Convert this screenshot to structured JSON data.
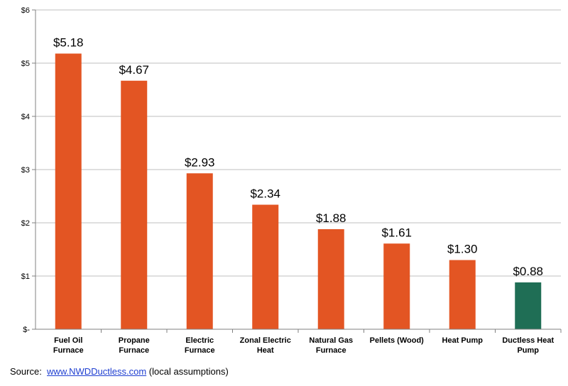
{
  "chart_data": {
    "type": "bar",
    "categories": [
      [
        "Fuel Oil",
        "Furnace"
      ],
      [
        "Propane",
        "Furnace"
      ],
      [
        "Electric",
        "Furnace"
      ],
      [
        "Zonal Electric",
        "Heat"
      ],
      [
        "Natural Gas",
        "Furnace"
      ],
      [
        "Pellets (Wood)"
      ],
      [
        "Heat Pump"
      ],
      [
        "Ductless Heat",
        "Pump"
      ]
    ],
    "values": [
      5.18,
      4.67,
      2.93,
      2.34,
      1.88,
      1.61,
      1.3,
      0.88
    ],
    "data_labels": [
      "$5.18",
      "$4.67",
      "$2.93",
      "$2.34",
      "$1.88",
      "$1.61",
      "$1.30",
      "$0.88"
    ],
    "bar_colors": [
      "#e35523",
      "#e35523",
      "#e35523",
      "#e35523",
      "#e35523",
      "#e35523",
      "#e35523",
      "#1f6e55"
    ],
    "ylim": [
      0,
      6
    ],
    "yticks": [
      0,
      1,
      2,
      3,
      4,
      5,
      6
    ],
    "ytick_labels": [
      "$-",
      "$1",
      "$2",
      "$3",
      "$4",
      "$5",
      "$6"
    ],
    "grid": true,
    "title": "",
    "xlabel": "",
    "ylabel": ""
  },
  "source": {
    "prefix": "Source:",
    "link": "www.NWDDuctless.com",
    "suffix": "(local assumptions)"
  }
}
